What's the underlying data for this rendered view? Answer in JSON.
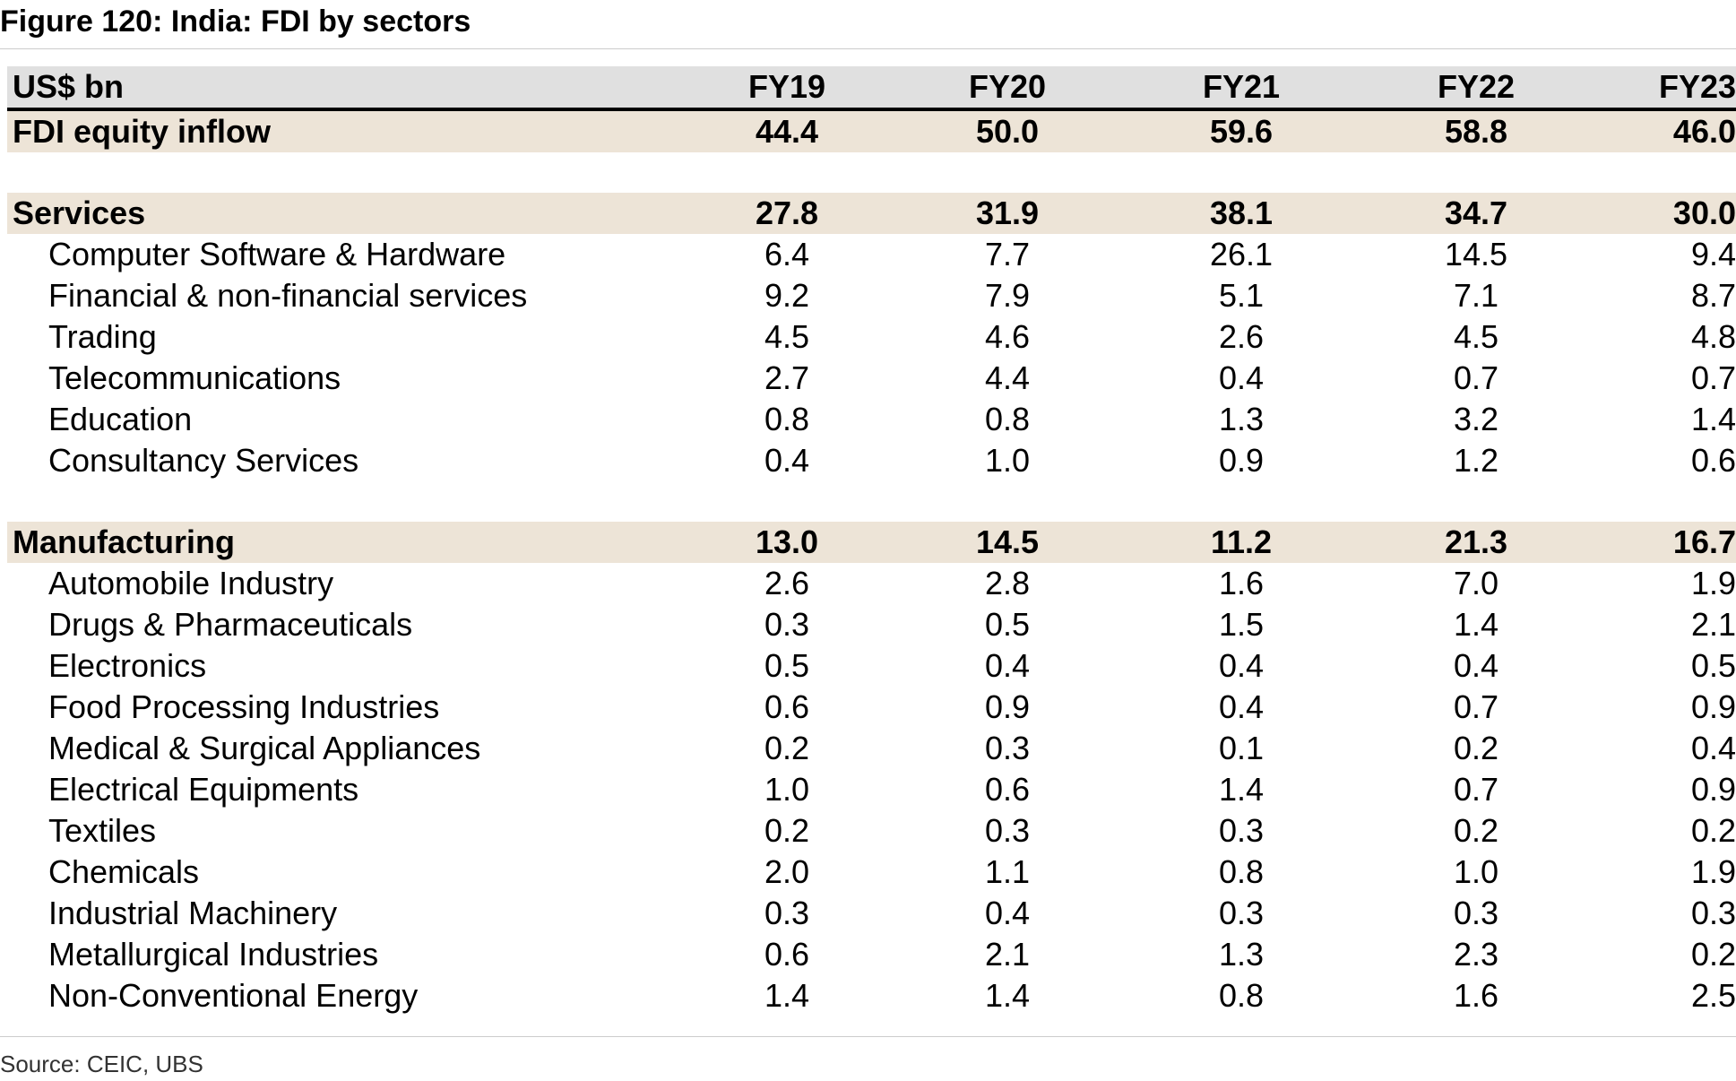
{
  "title": "Figure 120: India: FDI by sectors",
  "source": "Source: CEIC, UBS",
  "chart_data": {
    "type": "table",
    "title": "Figure 120: India: FDI by sectors",
    "unit_label": "US$ bn",
    "columns": [
      "FY19",
      "FY20",
      "FY21",
      "FY22",
      "FY23"
    ],
    "rows": [
      {
        "label": "FDI equity inflow",
        "kind": "total",
        "values": [
          "44.4",
          "50.0",
          "59.6",
          "58.8",
          "46.0"
        ]
      },
      {
        "kind": "spacer"
      },
      {
        "label": "Services",
        "kind": "group",
        "values": [
          "27.8",
          "31.9",
          "38.1",
          "34.7",
          "30.0"
        ]
      },
      {
        "label": "Computer Software & Hardware",
        "kind": "sub",
        "values": [
          "6.4",
          "7.7",
          "26.1",
          "14.5",
          "9.4"
        ]
      },
      {
        "label": "Financial & non-financial services",
        "kind": "sub",
        "values": [
          "9.2",
          "7.9",
          "5.1",
          "7.1",
          "8.7"
        ]
      },
      {
        "label": "Trading",
        "kind": "sub",
        "values": [
          "4.5",
          "4.6",
          "2.6",
          "4.5",
          "4.8"
        ]
      },
      {
        "label": "Telecommunications",
        "kind": "sub",
        "values": [
          "2.7",
          "4.4",
          "0.4",
          "0.7",
          "0.7"
        ]
      },
      {
        "label": "Education",
        "kind": "sub",
        "values": [
          "0.8",
          "0.8",
          "1.3",
          "3.2",
          "1.4"
        ]
      },
      {
        "label": "Consultancy Services",
        "kind": "sub",
        "values": [
          "0.4",
          "1.0",
          "0.9",
          "1.2",
          "0.6"
        ]
      },
      {
        "kind": "spacer"
      },
      {
        "label": "Manufacturing",
        "kind": "group",
        "values": [
          "13.0",
          "14.5",
          "11.2",
          "21.3",
          "16.7"
        ]
      },
      {
        "label": "Automobile Industry",
        "kind": "sub",
        "values": [
          "2.6",
          "2.8",
          "1.6",
          "7.0",
          "1.9"
        ]
      },
      {
        "label": "Drugs & Pharmaceuticals",
        "kind": "sub",
        "values": [
          "0.3",
          "0.5",
          "1.5",
          "1.4",
          "2.1"
        ]
      },
      {
        "label": "Electronics",
        "kind": "sub",
        "values": [
          "0.5",
          "0.4",
          "0.4",
          "0.4",
          "0.5"
        ]
      },
      {
        "label": "Food Processing Industries",
        "kind": "sub",
        "values": [
          "0.6",
          "0.9",
          "0.4",
          "0.7",
          "0.9"
        ]
      },
      {
        "label": "Medical & Surgical Appliances",
        "kind": "sub",
        "values": [
          "0.2",
          "0.3",
          "0.1",
          "0.2",
          "0.4"
        ]
      },
      {
        "label": "Electrical Equipments",
        "kind": "sub",
        "values": [
          "1.0",
          "0.6",
          "1.4",
          "0.7",
          "0.9"
        ]
      },
      {
        "label": "Textiles",
        "kind": "sub",
        "values": [
          "0.2",
          "0.3",
          "0.3",
          "0.2",
          "0.2"
        ]
      },
      {
        "label": "Chemicals",
        "kind": "sub",
        "values": [
          "2.0",
          "1.1",
          "0.8",
          "1.0",
          "1.9"
        ]
      },
      {
        "label": "Industrial Machinery",
        "kind": "sub",
        "values": [
          "0.3",
          "0.4",
          "0.3",
          "0.3",
          "0.3"
        ]
      },
      {
        "label": "Metallurgical Industries",
        "kind": "sub",
        "values": [
          "0.6",
          "2.1",
          "1.3",
          "2.3",
          "0.2"
        ]
      },
      {
        "label": "Non-Conventional Energy",
        "kind": "sub",
        "values": [
          "1.4",
          "1.4",
          "0.8",
          "1.6",
          "2.5"
        ]
      }
    ],
    "colors": {
      "header_band": "#e0e0e0",
      "group_band": "#ede4d7",
      "header_rule": "#000000"
    }
  }
}
